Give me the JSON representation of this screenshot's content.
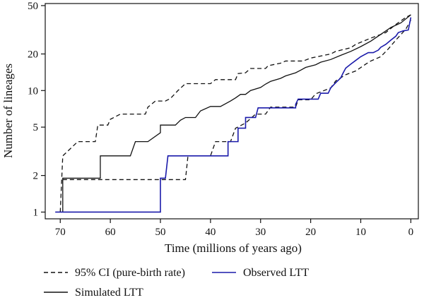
{
  "chart_data": {
    "type": "line",
    "title": "",
    "xlabel": "Time (millions of years ago)",
    "ylabel": "Number of lineages",
    "x_ticks": [
      70,
      60,
      50,
      40,
      30,
      20,
      10,
      0
    ],
    "y_ticks": [
      1,
      2,
      5,
      10,
      20,
      50
    ],
    "xlim": [
      73,
      -1.5
    ],
    "ylim": [
      0.88,
      52
    ],
    "y_scale": "log",
    "grid": false,
    "legend_placement": "bottom",
    "series": [
      {
        "name": "95% CI (pure-birth rate)",
        "style": "dashed",
        "color": "#111111",
        "points": [
          [
            70,
            1
          ],
          [
            69.5,
            2.9
          ],
          [
            66.5,
            3.8
          ],
          [
            63,
            3.8
          ],
          [
            62.5,
            5.2
          ],
          [
            60.5,
            5.2
          ],
          [
            60,
            5.8
          ],
          [
            58,
            6.4
          ],
          [
            53,
            6.4
          ],
          [
            52.5,
            7.3
          ],
          [
            51,
            8.2
          ],
          [
            49,
            8.2
          ],
          [
            48,
            8.6
          ],
          [
            46.5,
            10
          ],
          [
            45,
            11.4
          ],
          [
            40,
            11.4
          ],
          [
            39,
            12.3
          ],
          [
            35,
            12.3
          ],
          [
            34.5,
            13.8
          ],
          [
            33,
            14
          ],
          [
            32,
            15.2
          ],
          [
            29,
            15.2
          ],
          [
            28.5,
            16
          ],
          [
            26,
            16.8
          ],
          [
            25,
            17.5
          ],
          [
            21.5,
            17.5
          ],
          [
            20,
            18.5
          ],
          [
            16,
            20
          ],
          [
            15,
            21
          ],
          [
            12,
            22.5
          ],
          [
            11,
            24
          ],
          [
            8,
            27
          ],
          [
            5,
            30
          ],
          [
            3,
            35
          ],
          [
            1,
            40
          ],
          [
            0,
            42
          ]
        ]
      },
      {
        "name": "95% CI (pure-birth rate)",
        "style": "dashed",
        "color": "#111111",
        "points": [
          [
            69.5,
            1.85
          ],
          [
            45,
            1.85
          ],
          [
            44.5,
            2.9
          ],
          [
            40,
            2.9
          ],
          [
            39,
            3.8
          ],
          [
            36,
            3.8
          ],
          [
            35,
            4.9
          ],
          [
            33,
            5.4
          ],
          [
            31,
            6.4
          ],
          [
            29,
            6.4
          ],
          [
            28,
            7.3
          ],
          [
            23,
            7.3
          ],
          [
            22.5,
            8.4
          ],
          [
            20,
            8.4
          ],
          [
            19,
            9.4
          ],
          [
            16,
            10.5
          ],
          [
            15,
            12
          ],
          [
            13,
            13.5
          ],
          [
            11,
            14.5
          ],
          [
            9,
            16.5
          ],
          [
            8,
            17.5
          ],
          [
            6,
            19
          ],
          [
            4.5,
            22
          ],
          [
            3,
            26
          ],
          [
            1,
            32
          ],
          [
            0,
            38
          ]
        ]
      },
      {
        "name": "Simulated LTT",
        "style": "solid",
        "color": "#111111",
        "points": [
          [
            69.5,
            1
          ],
          [
            69.5,
            1.9
          ],
          [
            62,
            1.9
          ],
          [
            62,
            2.9
          ],
          [
            56,
            2.9
          ],
          [
            55,
            3.8
          ],
          [
            52.5,
            3.8
          ],
          [
            50,
            4.5
          ],
          [
            50,
            5.2
          ],
          [
            47,
            5.2
          ],
          [
            46,
            5.7
          ],
          [
            45,
            6
          ],
          [
            43,
            6
          ],
          [
            42,
            6.8
          ],
          [
            40,
            7.4
          ],
          [
            38,
            7.4
          ],
          [
            36,
            8.2
          ],
          [
            35,
            8.7
          ],
          [
            34,
            9.3
          ],
          [
            33,
            9.3
          ],
          [
            32,
            10
          ],
          [
            30,
            10.6
          ],
          [
            29,
            11.3
          ],
          [
            28,
            11.9
          ],
          [
            26,
            12.6
          ],
          [
            25,
            13.2
          ],
          [
            23,
            14
          ],
          [
            22,
            14.7
          ],
          [
            21,
            15.5
          ],
          [
            19,
            16.3
          ],
          [
            18,
            17.1
          ],
          [
            16,
            18
          ],
          [
            14,
            19.5
          ],
          [
            12,
            21
          ],
          [
            10,
            23
          ],
          [
            8,
            25.5
          ],
          [
            6,
            29
          ],
          [
            4,
            33
          ],
          [
            2,
            36
          ],
          [
            0,
            42
          ]
        ]
      },
      {
        "name": "Observed LTT",
        "style": "solid",
        "color": "#1a1aaa",
        "points": [
          [
            71,
            1
          ],
          [
            50,
            1
          ],
          [
            50,
            1.9
          ],
          [
            49,
            1.9
          ],
          [
            48.5,
            2.9
          ],
          [
            36.5,
            2.9
          ],
          [
            36.5,
            3.8
          ],
          [
            34.5,
            3.8
          ],
          [
            34.5,
            4.9
          ],
          [
            33,
            4.9
          ],
          [
            33,
            6
          ],
          [
            31,
            6
          ],
          [
            30.5,
            7.2
          ],
          [
            23,
            7.2
          ],
          [
            23,
            7.7
          ],
          [
            22.5,
            8.5
          ],
          [
            18.5,
            8.5
          ],
          [
            18,
            9.5
          ],
          [
            16.5,
            9.5
          ],
          [
            16,
            10.5
          ],
          [
            15,
            11.6
          ],
          [
            14,
            12.7
          ],
          [
            13.5,
            14
          ],
          [
            13,
            15.3
          ],
          [
            12,
            16.5
          ],
          [
            11,
            17.7
          ],
          [
            10,
            19
          ],
          [
            8.5,
            20.5
          ],
          [
            7.5,
            20.5
          ],
          [
            6.5,
            21.5
          ],
          [
            6,
            22.7
          ],
          [
            5,
            24
          ],
          [
            4,
            26
          ],
          [
            3,
            28
          ],
          [
            2.5,
            30
          ],
          [
            1.5,
            31
          ],
          [
            0.5,
            31.5
          ],
          [
            0,
            40
          ]
        ]
      }
    ]
  },
  "legend": [
    {
      "label": "95% CI (pure-birth rate)",
      "style": "dashed",
      "color": "#111111"
    },
    {
      "label": "Simulated LTT",
      "style": "solid",
      "color": "#111111"
    },
    {
      "label": "Observed LTT",
      "style": "solid",
      "color": "#1a1aaa"
    }
  ]
}
